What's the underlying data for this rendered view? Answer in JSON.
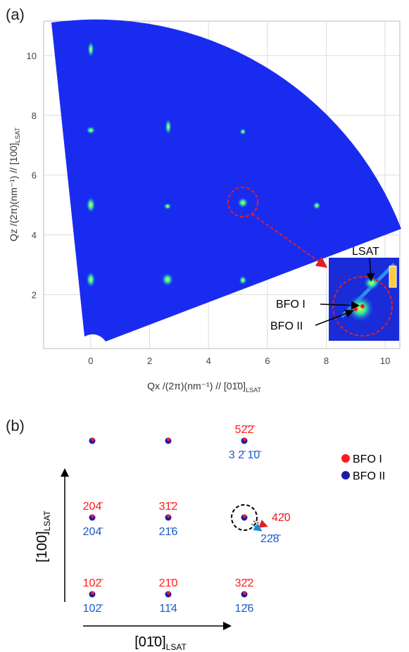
{
  "panel_a": {
    "label": "(a)",
    "x_axis_label": {
      "main": "Qx /(2π)(nm⁻¹) // [01̄0]",
      "sub": "LSAT"
    },
    "y_axis_label": {
      "main": "Qz /(2π)(nm⁻¹) // [100]",
      "sub": "LSAT"
    },
    "xlim": [
      -1.6,
      10.5
    ],
    "ylim": [
      0.2,
      11.15
    ],
    "xticks": [
      0,
      2,
      4,
      6,
      8,
      10
    ],
    "yticks": [
      2,
      4,
      6,
      8,
      10
    ],
    "inset_labels": {
      "lsat": "LSAT",
      "bfo1": "BFO I",
      "bfo2": "BFO II"
    }
  },
  "panel_b": {
    "label": "(b)",
    "axis_up": {
      "main": "[100]",
      "sub": "LSAT"
    },
    "axis_right": {
      "main": "[01̄0]",
      "sub": "LSAT"
    },
    "legend": [
      {
        "name": "BFO I",
        "color": "#ff1a1a"
      },
      {
        "name": "BFO II",
        "color": "#1a1aa8"
      }
    ],
    "labels": [
      {
        "red": "52̄2̄",
        "blue": "3 2̄ 1̄0̄"
      },
      {
        "red": "204̄",
        "blue": "204̄"
      },
      {
        "red": "31̄2",
        "blue": "21̄6"
      },
      {
        "red": "102̄",
        "blue": "102̄"
      },
      {
        "red": "21̄0",
        "blue": "11̄4"
      },
      {
        "red": "32̄2",
        "blue": "12̄6"
      }
    ],
    "callout": {
      "red": "42̄0",
      "blue": "22̄8̄"
    }
  }
}
